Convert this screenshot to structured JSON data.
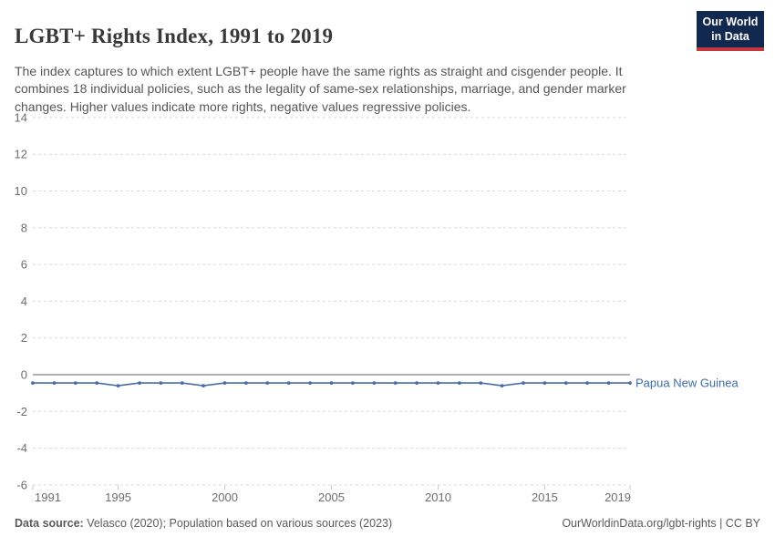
{
  "header": {
    "title": "LGBT+ Rights Index, 1991 to 2019",
    "subtitle": "The index captures to which extent LGBT+ people have the same rights as straight and cisgender people. It combines 18 individual policies, such as the legality of same-sex relationships, marriage, and gender marker changes. Higher values indicate more rights, negative values regressive policies.",
    "logo": {
      "line1": "Our World",
      "line2": "in Data"
    }
  },
  "chart_data": {
    "type": "line",
    "title": "LGBT+ Rights Index, 1991 to 2019",
    "x": [
      1991,
      1992,
      1993,
      1994,
      1995,
      1996,
      1997,
      1998,
      1999,
      2000,
      2001,
      2002,
      2003,
      2004,
      2005,
      2006,
      2007,
      2008,
      2009,
      2010,
      2011,
      2012,
      2013,
      2014,
      2015,
      2016,
      2017,
      2018,
      2019
    ],
    "series": [
      {
        "name": "Papua New Guinea",
        "values": [
          -0.45,
          -0.45,
          -0.45,
          -0.45,
          -0.6,
          -0.45,
          -0.45,
          -0.45,
          -0.6,
          -0.45,
          -0.45,
          -0.45,
          -0.45,
          -0.45,
          -0.45,
          -0.45,
          -0.45,
          -0.45,
          -0.45,
          -0.45,
          -0.45,
          -0.45,
          -0.6,
          -0.45,
          -0.45,
          -0.45,
          -0.45,
          -0.45,
          -0.45
        ]
      }
    ],
    "x_ticks": [
      1991,
      1995,
      2000,
      2005,
      2010,
      2015,
      2019
    ],
    "y_ticks": [
      14,
      12,
      10,
      8,
      6,
      4,
      2,
      0,
      -2,
      -4,
      -6
    ],
    "xlim": [
      1991,
      2019
    ],
    "ylim": [
      -6,
      14
    ],
    "xlabel": "",
    "ylabel": "",
    "grid": "horizontal-dashed",
    "zero_line": true,
    "legend_position": "end-of-line-label",
    "end_label": "Papua New Guinea"
  },
  "footer": {
    "source_label": "Data source:",
    "source_text": " Velasco (2020); Population based on various sources (2023)",
    "link_text": "OurWorldinData.org/lgbt-rights | CC BY"
  },
  "colors": {
    "series": "#4a6da6",
    "series_label": "#3d6ba8",
    "grid": "#d9d9d9",
    "zero_line": "#b0b0b0",
    "tick_mark": "#c8c8c8",
    "tick_text": "#6e6e6e",
    "title_text": "#383838",
    "subtitle_text": "#565656",
    "footer_text": "#5b5b5b",
    "logo_bg": "#12294f",
    "logo_red": "#c5383f"
  }
}
